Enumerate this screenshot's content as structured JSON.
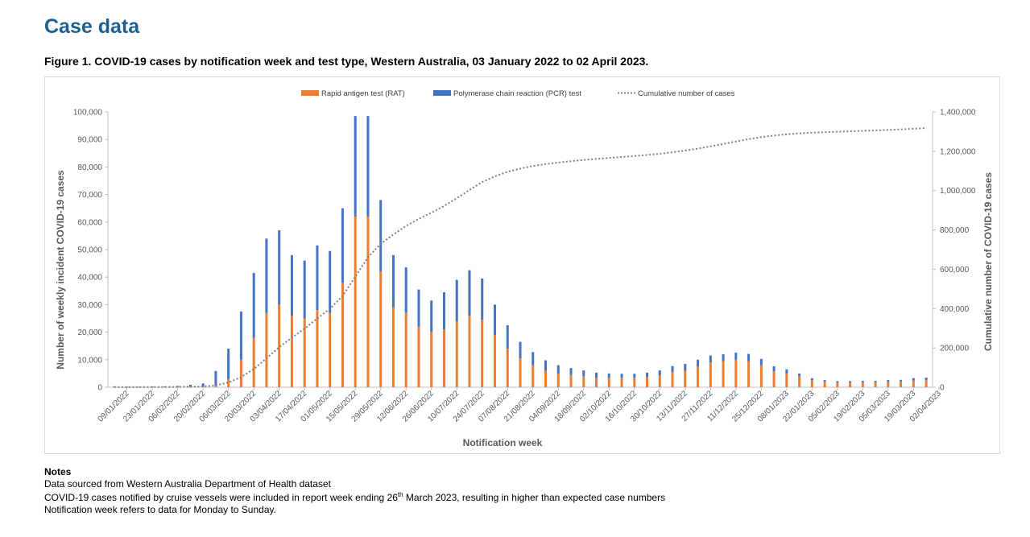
{
  "page": {
    "heading": "Case data",
    "figure_caption": "Figure 1. COVID-19 cases by notification week and test type, Western Australia, 03 January 2022 to 02 April 2023."
  },
  "notes": {
    "title": "Notes",
    "line1": "Data sourced from Western Australia Department of Health dataset",
    "line2_before": "COVID-19 cases notified by cruise vessels were included in report week ending 26",
    "line2_sup": "th",
    "line2_after": " March 2023, resulting in higher than expected case numbers",
    "line3": "Notification week refers to data for Monday to Sunday."
  },
  "colors": {
    "rat": "#ed7d31",
    "pcr": "#4472c4",
    "cumulative": "#7f7f7f",
    "axis_text": "#595959",
    "heading": "#1f5f8f"
  },
  "chart_data": {
    "type": "bar",
    "stacked": true,
    "xlabel": "Notification week",
    "ylabel": "Number of weekly incident COVID-19 cases",
    "y2label": "Cumulative number of COVID-19 cases",
    "ylim": [
      0,
      100000
    ],
    "y2lim": [
      0,
      1400000
    ],
    "yticks": [
      "0",
      "10,000",
      "20,000",
      "30,000",
      "40,000",
      "50,000",
      "60,000",
      "70,000",
      "80,000",
      "90,000",
      "100,000"
    ],
    "y2ticks": [
      "0",
      "200,000",
      "400,000",
      "600,000",
      "800,000",
      "1,000,000",
      "1,200,000",
      "1,400,000"
    ],
    "grid": false,
    "legend_position": "top",
    "x_tick_labels": [
      "09/01/2022",
      "23/01/2022",
      "06/02/2022",
      "20/02/2022",
      "06/03/2022",
      "20/03/2022",
      "03/04/2022",
      "17/04/2022",
      "01/05/2022",
      "15/05/2022",
      "29/05/2022",
      "12/06/2022",
      "26/06/2022",
      "10/07/2022",
      "24/07/2022",
      "07/08/2022",
      "21/08/2022",
      "04/09/2022",
      "18/09/2022",
      "02/10/2022",
      "16/10/2022",
      "30/10/2022",
      "13/11/2022",
      "27/11/2022",
      "11/12/2022",
      "25/12/2022",
      "08/01/2023",
      "22/01/2023",
      "05/02/2023",
      "19/02/2023",
      "05/03/2023",
      "19/03/2023",
      "02/04/2023"
    ],
    "series": [
      {
        "name": "Rapid antigen test (RAT)",
        "kind": "bar",
        "values": [
          0,
          0,
          0,
          0,
          0,
          100,
          200,
          400,
          700,
          3000,
          10000,
          18000,
          27000,
          30000,
          26000,
          25000,
          28000,
          27000,
          38000,
          62000,
          62000,
          42000,
          29000,
          27000,
          22000,
          20000,
          21000,
          24000,
          26000,
          24500,
          19000,
          14000,
          10500,
          8000,
          6000,
          5000,
          4500,
          4000,
          3500,
          3400,
          3400,
          3400,
          3700,
          4300,
          5500,
          6000,
          7500,
          9000,
          9500,
          10000,
          9500,
          8000,
          5800,
          5000,
          4000,
          2500,
          2000,
          1700,
          1700,
          1800,
          1800,
          2000,
          2100,
          2400,
          2500
        ]
      },
      {
        "name": "Polymerase chain reaction (PCR) test",
        "kind": "bar",
        "values": [
          300,
          200,
          200,
          300,
          300,
          400,
          700,
          1000,
          5200,
          11000,
          17500,
          23500,
          27000,
          27000,
          22000,
          21000,
          23500,
          22500,
          27000,
          36500,
          36500,
          26000,
          19000,
          16500,
          13500,
          11500,
          13500,
          15000,
          16500,
          15000,
          11000,
          8500,
          6000,
          4800,
          3800,
          3000,
          2500,
          2100,
          1800,
          1600,
          1500,
          1500,
          1600,
          1800,
          2200,
          2500,
          2500,
          2500,
          2500,
          2600,
          2600,
          2300,
          1800,
          1500,
          1000,
          800,
          600,
          500,
          500,
          500,
          500,
          600,
          600,
          900,
          1000
        ]
      },
      {
        "name": "Cumulative number of cases",
        "kind": "line",
        "axis": "right",
        "values": [
          300,
          500,
          700,
          1000,
          1300,
          1800,
          2700,
          4100,
          10000,
          24000,
          51500,
          93000,
          147000,
          204000,
          252000,
          298000,
          349500,
          399000,
          464000,
          562500,
          661000,
          729000,
          777000,
          820500,
          856000,
          887500,
          922000,
          961000,
          1003500,
          1043000,
          1073000,
          1095500,
          1112000,
          1124800,
          1134600,
          1142600,
          1149600,
          1155700,
          1161000,
          1166000,
          1170900,
          1175800,
          1181100,
          1187200,
          1194900,
          1203400,
          1213400,
          1224900,
          1236900,
          1249500,
          1261600,
          1271900,
          1279500,
          1286000,
          1291000,
          1294300,
          1296900,
          1299100,
          1301300,
          1303600,
          1305900,
          1308500,
          1311200,
          1314500,
          1318000
        ]
      }
    ]
  }
}
